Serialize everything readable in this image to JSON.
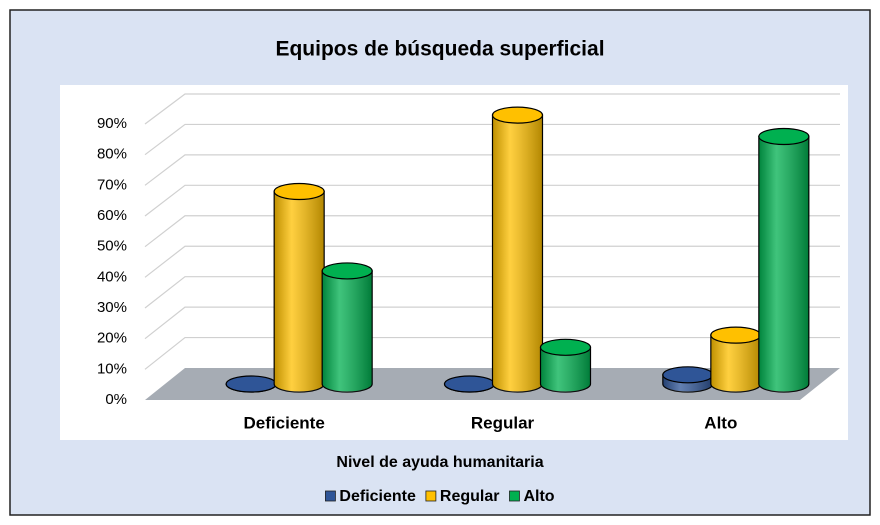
{
  "chart_data": {
    "type": "bar",
    "title": "Equipos de búsqueda superficial",
    "x_label": "Nivel de ayuda humanitaria",
    "categories": [
      "Deficiente",
      "Regular",
      "Alto"
    ],
    "series": [
      {
        "name": "Deficiente",
        "color": "#2f5597",
        "values": [
          0,
          0,
          3
        ]
      },
      {
        "name": "Regular",
        "color": "#ffc000",
        "values": [
          63,
          88,
          16
        ]
      },
      {
        "name": "Alto",
        "color": "#00b050",
        "values": [
          37,
          12,
          81
        ]
      }
    ],
    "ylim": [
      0,
      90
    ],
    "yticks": [
      {
        "value": 0,
        "label": "0%"
      },
      {
        "value": 10,
        "label": "10%"
      },
      {
        "value": 20,
        "label": "20%"
      },
      {
        "value": 30,
        "label": "30%"
      },
      {
        "value": 40,
        "label": "40%"
      },
      {
        "value": 50,
        "label": "50%"
      },
      {
        "value": 60,
        "label": "60%"
      },
      {
        "value": 70,
        "label": "70%"
      },
      {
        "value": 80,
        "label": "80%"
      },
      {
        "value": 90,
        "label": "90%"
      }
    ],
    "grid": true,
    "legend": "bottom"
  }
}
